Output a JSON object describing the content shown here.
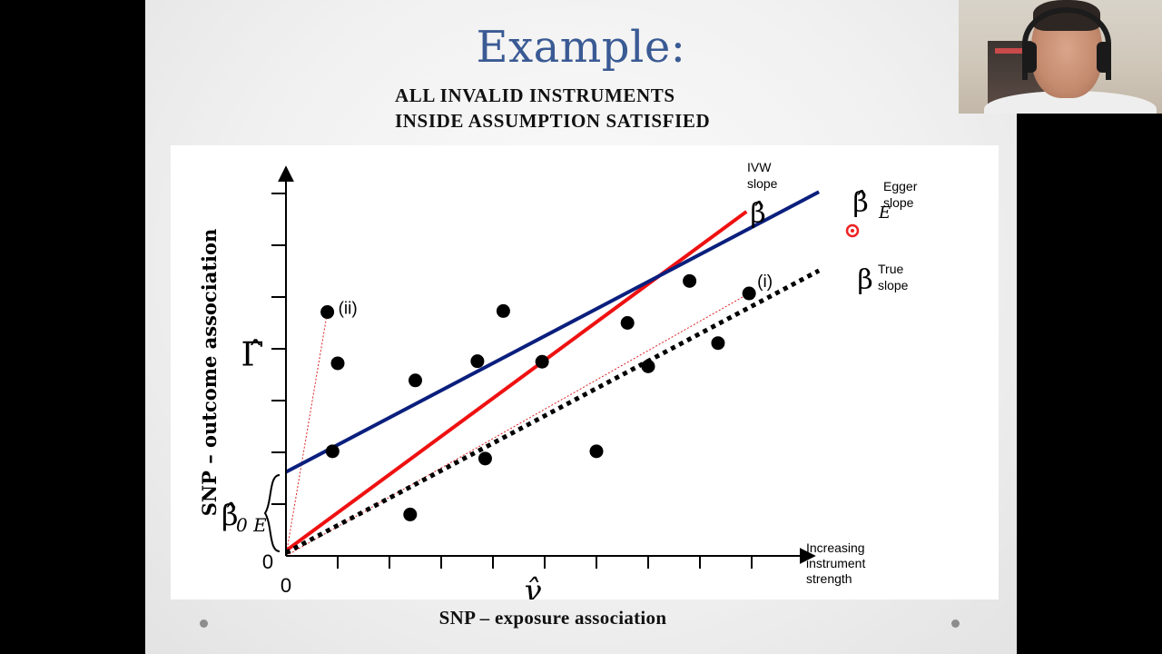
{
  "slide": {
    "title": "Example:",
    "subtitle_lines": [
      "ALL INVALID INSTRUMENTS",
      "INSIDE ASSUMPTION SATISFIED"
    ],
    "x_caption": "SNP – exposure association"
  },
  "colors": {
    "title": "#3a5a94",
    "ivw_line": "#ee1111",
    "egger_line": "#0a1f7d",
    "true_line": "#000000",
    "guide_line": "#dd2222",
    "points": "#000000"
  },
  "chart_data": {
    "type": "scatter",
    "xlabel": "γ̂",
    "ylabel": "SNP – outcome association",
    "y_symbol": "Γ̂",
    "x_arrow_label": [
      "Increasing",
      "instrument",
      "strength"
    ],
    "xlim": [
      0,
      10
    ],
    "ylim": [
      0,
      7.4
    ],
    "origin_labels": {
      "x": "0",
      "y": "0"
    },
    "x_ticks": [
      1,
      2,
      3,
      4,
      5,
      6,
      7,
      8,
      9
    ],
    "y_ticks": [
      1,
      2,
      3,
      4,
      5,
      6,
      7
    ],
    "points": [
      {
        "x": 0.8,
        "y": 4.71,
        "label": "(ii)"
      },
      {
        "x": 1.0,
        "y": 3.72
      },
      {
        "x": 0.9,
        "y": 2.02
      },
      {
        "x": 2.4,
        "y": 0.8
      },
      {
        "x": 2.5,
        "y": 3.39
      },
      {
        "x": 3.7,
        "y": 3.76
      },
      {
        "x": 3.85,
        "y": 1.88
      },
      {
        "x": 4.2,
        "y": 4.73
      },
      {
        "x": 4.95,
        "y": 3.75
      },
      {
        "x": 6.0,
        "y": 2.02
      },
      {
        "x": 6.6,
        "y": 4.5
      },
      {
        "x": 7.0,
        "y": 3.66
      },
      {
        "x": 7.8,
        "y": 5.31
      },
      {
        "x": 8.35,
        "y": 4.11
      },
      {
        "x": 8.95,
        "y": 5.07,
        "label": "(i)"
      }
    ],
    "series": [
      {
        "name": "IVW slope",
        "style": "solid",
        "color": "#ee1111",
        "x": [
          0,
          8.9
        ],
        "y": [
          0.1,
          6.65
        ],
        "label_symbol": "β̂"
      },
      {
        "name": "Egger slope",
        "style": "solid",
        "color": "#0a1f7d",
        "x": [
          0,
          10.3
        ],
        "y": [
          1.62,
          7.03
        ],
        "label_symbol": "β̂_E"
      },
      {
        "name": "True slope",
        "style": "dotted",
        "color": "#000000",
        "x": [
          0,
          10.3
        ],
        "y": [
          0.06,
          5.51
        ],
        "label_symbol": "β"
      }
    ],
    "guide_lines": [
      {
        "x": [
          0,
          8.95
        ],
        "y": [
          0,
          5.07
        ]
      },
      {
        "x": [
          0,
          0.8
        ],
        "y": [
          0,
          4.71
        ]
      }
    ],
    "intercept_label": "β̂_0E",
    "annotations": {
      "ivw": [
        "IVW",
        "slope"
      ],
      "egger": [
        "Egger",
        "slope"
      ],
      "true": [
        "True",
        "slope"
      ],
      "point_i": "(i)",
      "point_ii": "(ii)"
    }
  }
}
